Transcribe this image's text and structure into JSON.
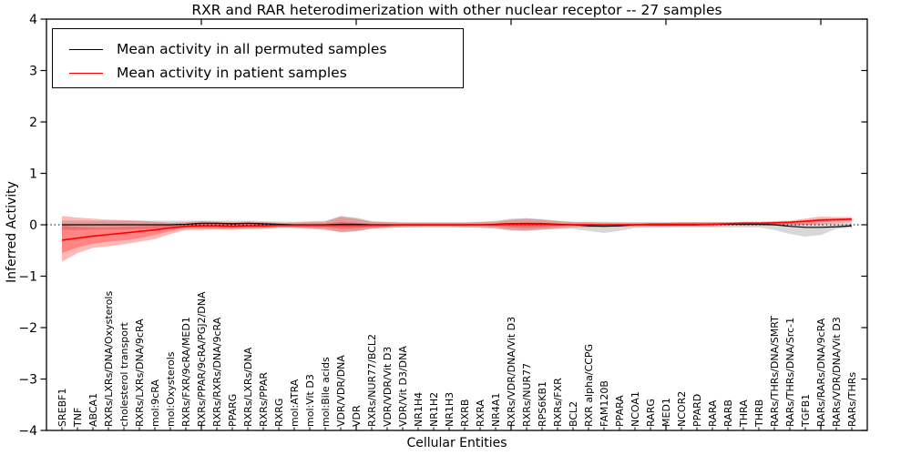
{
  "title": "RXR and RAR heterodimerization with other nuclear receptor -- 27 samples",
  "axes": {
    "ylabel": "Inferred Activity",
    "xlabel": "Cellular Entities",
    "yticks": [
      4,
      3,
      2,
      1,
      0,
      -1,
      -2,
      -3,
      -4
    ]
  },
  "legend": {
    "items": [
      {
        "label": "Mean activity in all permuted samples",
        "color": "#000000"
      },
      {
        "label": "Mean activity in patient samples",
        "color": "#ff0000"
      }
    ]
  },
  "chart_data": {
    "type": "line",
    "title": "RXR and RAR heterodimerization with other nuclear receptor -- 27 samples",
    "xlabel": "Cellular Entities",
    "ylabel": "Inferred Activity",
    "ylim": [
      -4,
      4
    ],
    "xlim": [
      0,
      53
    ],
    "grid": false,
    "legend_position": "upper left",
    "zero_line": true,
    "major_xticks": [
      10,
      20,
      30,
      40,
      50
    ],
    "categories": [
      "SREBF1",
      "TNF",
      "ABCA1",
      "RXRs/LXRs/DNA/Oxysterols",
      "cholesterol transport",
      "RXRs/LXRs/DNA/9cRA",
      "mol:9cRA",
      "mol:Oxysterols",
      "RXRs/FXR/9cRA/MED1",
      "RXRs/PPAR/9cRA/PGJ2/DNA",
      "RXRs/RXRs/DNA/9cRA",
      "PPARG",
      "RXRs/LXRs/DNA",
      "RXRs/PPAR",
      "RXRG",
      "mol:ATRA",
      "mol:Vit D3",
      "mol:Bile acids",
      "VDR/VDR/DNA",
      "VDR",
      "RXRs/NUR77/BCL2",
      "VDR/VDR/Vit D3",
      "VDR/Vit D3/DNA",
      "NR1H4",
      "NR1H2",
      "NR1H3",
      "RXRB",
      "RXRA",
      "NR4A1",
      "RXRs/VDR/DNA/Vit D3",
      "RXRs/NUR77",
      "RPS6KB1",
      "RXRs/FXR",
      "BCL2",
      "RXR alpha/CCPG",
      "FAM120B",
      "PPARA",
      "NCOA1",
      "RARG",
      "MED1",
      "NCOR2",
      "PPARD",
      "RARA",
      "RARB",
      "THRA",
      "THRB",
      "RARs/THRs/DNA/SMRT",
      "RARs/THRs/DNA/Src-1",
      "TGFB1",
      "RARs/RARs/DNA/9cRA",
      "RARs/VDR/DNA/Vit D3",
      "RARs/THRs"
    ],
    "series": [
      {
        "id": "permuted",
        "name": "Mean activity in all permuted samples",
        "color": "#000000",
        "width": 1.2,
        "values": [
          0,
          0,
          0,
          0,
          0,
          0,
          0,
          0,
          0.01,
          0.03,
          0.03,
          0.02,
          0.03,
          0.02,
          0.01,
          0,
          0,
          0,
          0.01,
          0.01,
          0,
          0,
          0,
          0,
          0,
          0,
          0,
          0,
          0.01,
          0.02,
          0.02,
          0.02,
          0.01,
          0,
          -0.02,
          -0.03,
          -0.02,
          0,
          0,
          0,
          0,
          0,
          0.01,
          0.01,
          0.01,
          0.01,
          0,
          -0.03,
          -0.05,
          -0.05,
          -0.04,
          -0.02
        ]
      },
      {
        "id": "patient",
        "name": "Mean activity in patient samples",
        "color": "#ff0000",
        "width": 1.6,
        "values": [
          -0.3,
          -0.26,
          -0.22,
          -0.19,
          -0.16,
          -0.13,
          -0.1,
          -0.06,
          -0.03,
          -0.02,
          -0.02,
          -0.03,
          -0.02,
          -0.02,
          -0.01,
          -0.01,
          -0.01,
          -0.01,
          -0.01,
          -0.01,
          -0.01,
          -0.01,
          0,
          0,
          0,
          0,
          0,
          0,
          0,
          0.01,
          0.01,
          0.01,
          0,
          0,
          0,
          0,
          0,
          0,
          0.01,
          0.01,
          0.01,
          0.01,
          0.01,
          0.02,
          0.03,
          0.03,
          0.04,
          0.05,
          0.07,
          0.09,
          0.1,
          0.11
        ]
      }
    ],
    "bands": [
      {
        "name": "permuted-range",
        "color": "#999999",
        "alpha": 0.38,
        "hi": [
          0.08,
          0.08,
          0.08,
          0.08,
          0.08,
          0.08,
          0.08,
          0.08,
          0.08,
          0.08,
          0.08,
          0.08,
          0.08,
          0.07,
          0.06,
          0.06,
          0.07,
          0.08,
          0.17,
          0.14,
          0.07,
          0.06,
          0.05,
          0.05,
          0.05,
          0.05,
          0.05,
          0.06,
          0.08,
          0.12,
          0.13,
          0.11,
          0.08,
          0.06,
          0.06,
          0.06,
          0.05,
          0.05,
          0.05,
          0.05,
          0.05,
          0.05,
          0.05,
          0.05,
          0.05,
          0.05,
          0.05,
          0.04,
          0.04,
          0.03,
          0.04,
          0.05
        ],
        "lo": [
          -0.1,
          -0.1,
          -0.09,
          -0.09,
          -0.09,
          -0.08,
          -0.08,
          -0.08,
          -0.08,
          -0.08,
          -0.08,
          -0.08,
          -0.08,
          -0.07,
          -0.06,
          -0.06,
          -0.07,
          -0.08,
          -0.15,
          -0.13,
          -0.07,
          -0.06,
          -0.05,
          -0.05,
          -0.05,
          -0.05,
          -0.05,
          -0.06,
          -0.08,
          -0.12,
          -0.12,
          -0.1,
          -0.08,
          -0.08,
          -0.12,
          -0.16,
          -0.12,
          -0.06,
          -0.05,
          -0.05,
          -0.05,
          -0.05,
          -0.05,
          -0.05,
          -0.05,
          -0.05,
          -0.1,
          -0.18,
          -0.23,
          -0.2,
          -0.08,
          -0.06
        ]
      },
      {
        "name": "patient-range-outer",
        "color": "#ff0000",
        "alpha": 0.28,
        "hi": [
          0.17,
          0.14,
          0.12,
          0.1,
          0.09,
          0.08,
          0.06,
          0.04,
          0.05,
          0.07,
          0.06,
          0.05,
          0.06,
          0.05,
          0.04,
          0.04,
          0.05,
          0.06,
          0.16,
          0.12,
          0.06,
          0.05,
          0.04,
          0.04,
          0.04,
          0.04,
          0.04,
          0.05,
          0.06,
          0.1,
          0.12,
          0.1,
          0.07,
          0.05,
          0.05,
          0.04,
          0.04,
          0.04,
          0.04,
          0.04,
          0.05,
          0.05,
          0.05,
          0.05,
          0.06,
          0.06,
          0.07,
          0.08,
          0.12,
          0.16,
          0.15,
          0.15
        ],
        "lo": [
          -0.72,
          -0.55,
          -0.45,
          -0.42,
          -0.38,
          -0.33,
          -0.28,
          -0.18,
          -0.1,
          -0.1,
          -0.09,
          -0.1,
          -0.08,
          -0.08,
          -0.06,
          -0.06,
          -0.08,
          -0.1,
          -0.14,
          -0.12,
          -0.08,
          -0.06,
          -0.05,
          -0.04,
          -0.04,
          -0.04,
          -0.05,
          -0.05,
          -0.06,
          -0.1,
          -0.11,
          -0.09,
          -0.07,
          -0.05,
          -0.05,
          -0.04,
          -0.04,
          -0.04,
          -0.04,
          -0.04,
          -0.03,
          -0.03,
          -0.03,
          -0.02,
          -0.02,
          -0.02,
          -0.01,
          -0.01,
          0.0,
          0.01,
          0.03,
          0.05
        ]
      },
      {
        "name": "patient-range-inner",
        "color": "#ff0000",
        "alpha": 0.28,
        "hi": [
          -0.02,
          -0.04,
          -0.05,
          -0.05,
          -0.04,
          -0.03,
          -0.02,
          -0.01,
          0.01,
          0.02,
          0.02,
          0.01,
          0.02,
          0.01,
          0.01,
          0.01,
          0.01,
          0.02,
          0.06,
          0.04,
          0.02,
          0.01,
          0.01,
          0.01,
          0.01,
          0.01,
          0.01,
          0.01,
          0.02,
          0.04,
          0.05,
          0.04,
          0.02,
          0.02,
          0.02,
          0.01,
          0.01,
          0.01,
          0.02,
          0.02,
          0.02,
          0.02,
          0.03,
          0.03,
          0.04,
          0.04,
          0.05,
          0.06,
          0.08,
          0.12,
          0.12,
          0.13
        ],
        "lo": [
          -0.55,
          -0.44,
          -0.37,
          -0.33,
          -0.3,
          -0.26,
          -0.2,
          -0.12,
          -0.06,
          -0.06,
          -0.06,
          -0.06,
          -0.05,
          -0.05,
          -0.04,
          -0.04,
          -0.04,
          -0.05,
          -0.08,
          -0.07,
          -0.04,
          -0.03,
          -0.02,
          -0.02,
          -0.02,
          -0.02,
          -0.02,
          -0.02,
          -0.03,
          -0.05,
          -0.06,
          -0.05,
          -0.03,
          -0.02,
          -0.02,
          -0.02,
          -0.02,
          -0.02,
          -0.01,
          -0.01,
          -0.01,
          -0.01,
          -0.01,
          0.0,
          0.0,
          0.0,
          0.01,
          0.02,
          0.03,
          0.05,
          0.06,
          0.08
        ]
      }
    ]
  }
}
